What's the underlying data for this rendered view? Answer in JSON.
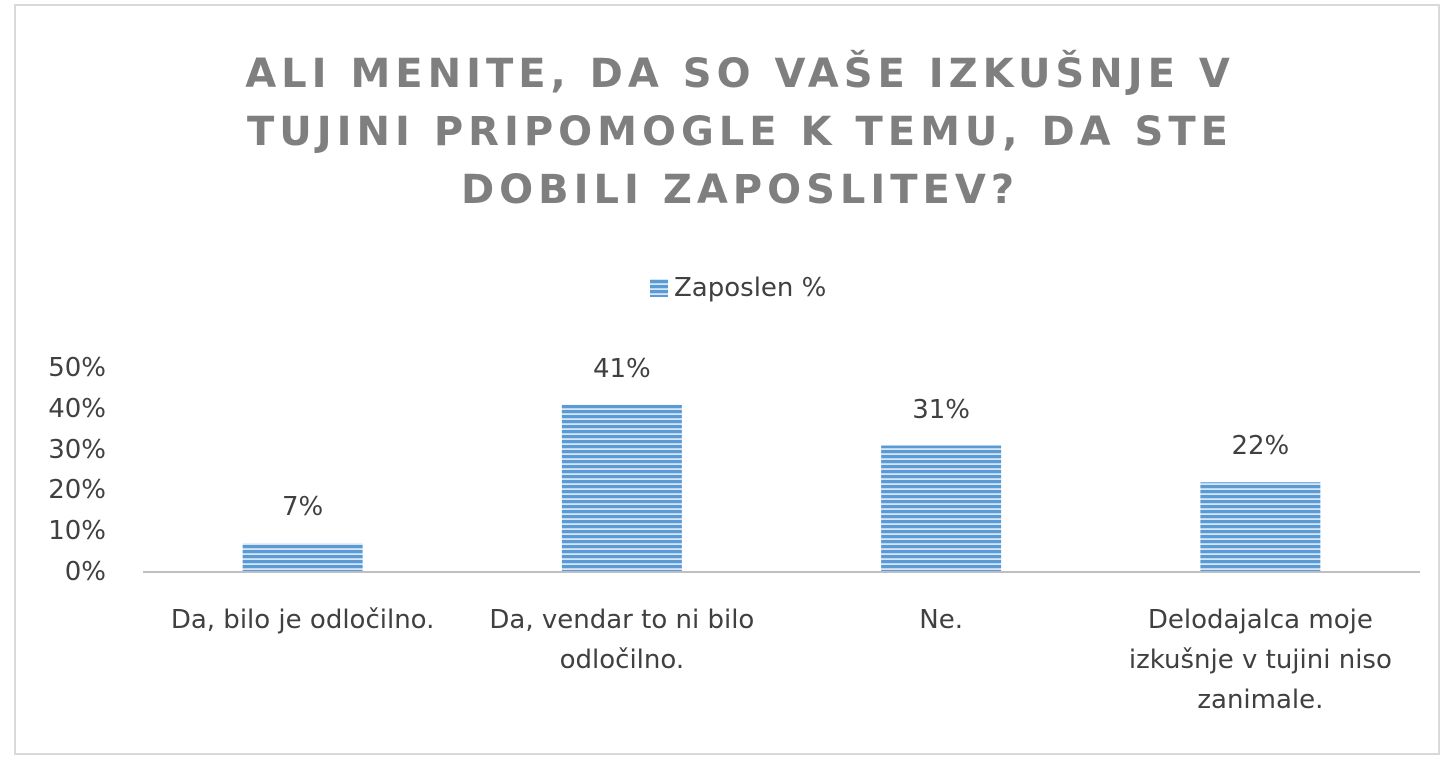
{
  "chart_data": {
    "type": "bar",
    "title": "ALI MENITE, DA SO VAŠE IZKUŠNJE V TUJINI PRIPOMOGLE K TEMU, DA STE DOBILI ZAPOSLITEV?",
    "categories": [
      "Da, bilo je odločilno.",
      "Da, vendar to ni bilo odločilno.",
      "Ne.",
      "Delodajalca moje izkušnje v tujini niso zanimale."
    ],
    "series": [
      {
        "name": "Zaposlen %",
        "color": "#5b9bd5",
        "values": [
          7,
          41,
          31,
          22
        ],
        "value_labels": [
          "7%",
          "41%",
          "31%",
          "22%"
        ]
      }
    ],
    "ylim": [
      0,
      50
    ],
    "yticks": [
      {
        "value": 0,
        "label": "0%"
      },
      {
        "value": 10,
        "label": "10%"
      },
      {
        "value": 20,
        "label": "20%"
      },
      {
        "value": 30,
        "label": "30%"
      },
      {
        "value": 40,
        "label": "40%"
      },
      {
        "value": 50,
        "label": "50%"
      }
    ],
    "legend": "top",
    "grid": false
  }
}
